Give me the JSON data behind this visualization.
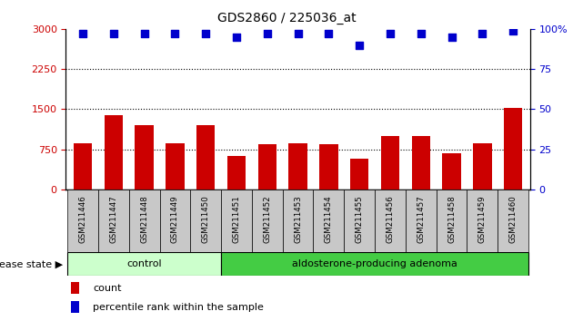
{
  "title": "GDS2860 / 225036_at",
  "categories": [
    "GSM211446",
    "GSM211447",
    "GSM211448",
    "GSM211449",
    "GSM211450",
    "GSM211451",
    "GSM211452",
    "GSM211453",
    "GSM211454",
    "GSM211455",
    "GSM211456",
    "GSM211457",
    "GSM211458",
    "GSM211459",
    "GSM211460"
  ],
  "counts": [
    870,
    1380,
    1200,
    870,
    1200,
    630,
    850,
    870,
    840,
    570,
    1000,
    1000,
    680,
    870,
    1520
  ],
  "percentiles": [
    97,
    97,
    97,
    97,
    97,
    95,
    97,
    97,
    97,
    90,
    97,
    97,
    95,
    97,
    99
  ],
  "left_ylim": [
    0,
    3000
  ],
  "right_ylim": [
    0,
    100
  ],
  "left_yticks": [
    0,
    750,
    1500,
    2250,
    3000
  ],
  "right_yticks": [
    0,
    25,
    50,
    75,
    100
  ],
  "bar_color": "#cc0000",
  "dot_color": "#0000cc",
  "grid_color": "#000000",
  "n_control": 5,
  "n_adenoma": 10,
  "control_label": "control",
  "adenoma_label": "aldosterone-producing adenoma",
  "disease_state_label": "disease state",
  "legend_count_label": "count",
  "legend_percentile_label": "percentile rank within the sample",
  "xticklabel_bg": "#c8c8c8",
  "control_bg": "#ccffcc",
  "adenoma_bg": "#44cc44",
  "bar_width": 0.6,
  "dot_size": 30,
  "title_fontsize": 10
}
